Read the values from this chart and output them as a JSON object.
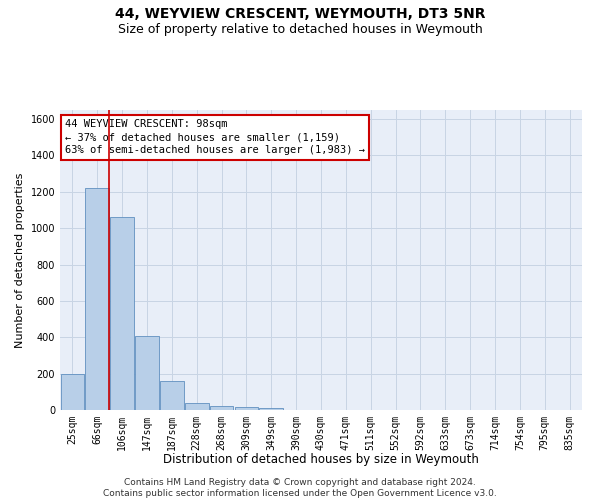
{
  "title": "44, WEYVIEW CRESCENT, WEYMOUTH, DT3 5NR",
  "subtitle": "Size of property relative to detached houses in Weymouth",
  "xlabel": "Distribution of detached houses by size in Weymouth",
  "ylabel": "Number of detached properties",
  "bin_labels": [
    "25sqm",
    "66sqm",
    "106sqm",
    "147sqm",
    "187sqm",
    "228sqm",
    "268sqm",
    "309sqm",
    "349sqm",
    "390sqm",
    "430sqm",
    "471sqm",
    "511sqm",
    "552sqm",
    "592sqm",
    "633sqm",
    "673sqm",
    "714sqm",
    "754sqm",
    "795sqm",
    "835sqm"
  ],
  "bar_heights": [
    200,
    1220,
    1060,
    405,
    160,
    40,
    20,
    15,
    10,
    0,
    0,
    0,
    0,
    0,
    0,
    0,
    0,
    0,
    0,
    0,
    0
  ],
  "bar_color": "#b8cfe8",
  "bar_edge_color": "#6090c0",
  "vline_x_bar_index": 1,
  "vline_right_edge": true,
  "annotation_text": "44 WEYVIEW CRESCENT: 98sqm\n← 37% of detached houses are smaller (1,159)\n63% of semi-detached houses are larger (1,983) →",
  "annotation_box_color": "#ffffff",
  "annotation_box_edge": "#cc0000",
  "vline_color": "#cc0000",
  "ylim": [
    0,
    1650
  ],
  "yticks": [
    0,
    200,
    400,
    600,
    800,
    1000,
    1200,
    1400,
    1600
  ],
  "grid_color": "#c8d4e4",
  "bg_color": "#e8eef8",
  "footer": "Contains HM Land Registry data © Crown copyright and database right 2024.\nContains public sector information licensed under the Open Government Licence v3.0.",
  "title_fontsize": 10,
  "subtitle_fontsize": 9,
  "xlabel_fontsize": 8.5,
  "ylabel_fontsize": 8,
  "tick_fontsize": 7,
  "annotation_fontsize": 7.5,
  "footer_fontsize": 6.5
}
